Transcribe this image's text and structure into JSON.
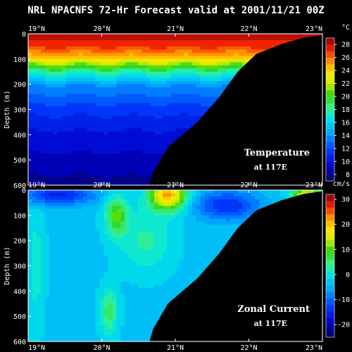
{
  "title": "NRL NPACNFS 72-Hr Forecast valid at 2001/11/21 00Z",
  "chart_data": [
    {
      "type": "heatmap",
      "x_axis": {
        "range": [
          19,
          23
        ],
        "ticks": [
          19,
          20,
          21,
          22,
          23
        ],
        "tick_labels": [
          "19°N",
          "20°N",
          "21°N",
          "22°N",
          "23°N"
        ]
      },
      "y_axis": {
        "label": "Depth (m)",
        "range": [
          0,
          600
        ],
        "inverted": true,
        "ticks": [
          0,
          100,
          200,
          300,
          400,
          500,
          600
        ]
      },
      "annotation": "Temperature",
      "annotation_sub": "at 117E",
      "colorbar": {
        "unit": "°C",
        "range": [
          7,
          29
        ],
        "tick_values": [
          8,
          10,
          12,
          14,
          16,
          18,
          20,
          22,
          24,
          26,
          28
        ]
      },
      "field_depths_m": [
        0,
        50,
        100,
        150,
        200,
        300,
        400,
        500,
        600
      ],
      "field_values_c": [
        28.5,
        27,
        24,
        18,
        14,
        11.5,
        10,
        9,
        8
      ],
      "land_boundary": [
        {
          "depth": 600,
          "lat": 20.65
        },
        {
          "depth": 550,
          "lat": 20.7
        },
        {
          "depth": 450,
          "lat": 20.9
        },
        {
          "depth": 350,
          "lat": 21.3
        },
        {
          "depth": 250,
          "lat": 21.6
        },
        {
          "depth": 150,
          "lat": 21.85
        },
        {
          "depth": 80,
          "lat": 22.1
        },
        {
          "depth": 40,
          "lat": 22.45
        },
        {
          "depth": 15,
          "lat": 22.75
        },
        {
          "depth": 5,
          "lat": 23.0
        }
      ]
    },
    {
      "type": "heatmap",
      "x_axis": {
        "range": [
          19,
          23
        ],
        "ticks": [
          19,
          20,
          21,
          22,
          23
        ],
        "tick_labels": [
          "19°N",
          "20°N",
          "21°N",
          "22°N",
          "23°N"
        ]
      },
      "y_axis": {
        "label": "Depth (m)",
        "range": [
          0,
          600
        ],
        "inverted": true,
        "ticks": [
          0,
          100,
          200,
          300,
          400,
          500,
          600
        ]
      },
      "annotation": "Zonal Current",
      "annotation_sub": "at 117E",
      "colorbar": {
        "unit": "cm/s",
        "range": [
          -25,
          32
        ],
        "tick_values": [
          -20,
          -10,
          0,
          10,
          20,
          30
        ]
      },
      "field_background_cms": -3,
      "field_features": [
        {
          "lat": 19.4,
          "depth": 20,
          "value": -15,
          "spread_lat": 0.5,
          "spread_depth": 40
        },
        {
          "lat": 20.9,
          "depth": 20,
          "value": 22,
          "spread_lat": 0.25,
          "spread_depth": 60
        },
        {
          "lat": 20.2,
          "depth": 100,
          "value": 10,
          "spread_lat": 0.15,
          "spread_depth": 80
        },
        {
          "lat": 20.6,
          "depth": 200,
          "value": 3,
          "spread_lat": 0.35,
          "spread_depth": 120
        },
        {
          "lat": 20.1,
          "depth": 480,
          "value": 6,
          "spread_lat": 0.12,
          "spread_depth": 90
        },
        {
          "lat": 21.7,
          "depth": 60,
          "value": -14,
          "spread_lat": 0.45,
          "spread_depth": 60
        },
        {
          "lat": 22.8,
          "depth": 15,
          "value": 20,
          "spread_lat": 0.2,
          "spread_depth": 15
        },
        {
          "lat": 19.1,
          "depth": 300,
          "value": 1,
          "spread_lat": 0.12,
          "spread_depth": 250
        }
      ],
      "land_boundary": [
        {
          "depth": 600,
          "lat": 20.65
        },
        {
          "depth": 550,
          "lat": 20.7
        },
        {
          "depth": 450,
          "lat": 20.9
        },
        {
          "depth": 350,
          "lat": 21.3
        },
        {
          "depth": 250,
          "lat": 21.6
        },
        {
          "depth": 150,
          "lat": 21.85
        },
        {
          "depth": 80,
          "lat": 22.1
        },
        {
          "depth": 40,
          "lat": 22.45
        },
        {
          "depth": 15,
          "lat": 22.75
        },
        {
          "depth": 5,
          "lat": 23.0
        }
      ]
    }
  ]
}
